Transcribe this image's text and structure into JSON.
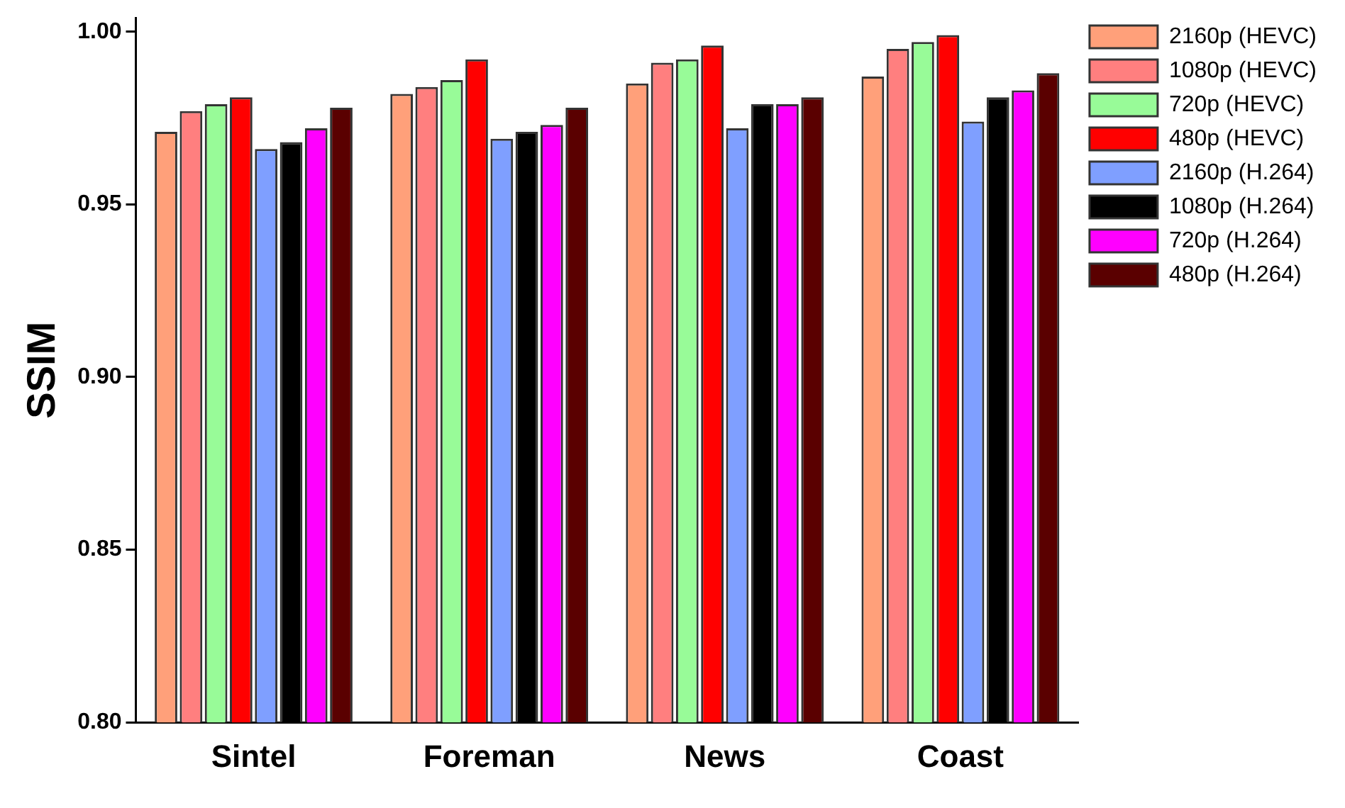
{
  "chart_data": {
    "type": "bar",
    "ylabel": "SSIM",
    "categories": [
      "Sintel",
      "Foreman",
      "News",
      "Coast"
    ],
    "series": [
      {
        "name": "2160p (HEVC)",
        "color": "#ffa07a",
        "values": [
          0.971,
          0.982,
          0.985,
          0.987
        ]
      },
      {
        "name": "1080p (HEVC)",
        "color": "#ff7f7f",
        "values": [
          0.977,
          0.984,
          0.991,
          0.995
        ]
      },
      {
        "name": "720p (HEVC)",
        "color": "#98fb98",
        "values": [
          0.979,
          0.986,
          0.992,
          0.997
        ]
      },
      {
        "name": "480p (HEVC)",
        "color": "#ff0000",
        "values": [
          0.981,
          0.992,
          0.996,
          0.999
        ]
      },
      {
        "name": "2160p (H.264)",
        "color": "#7f9fff",
        "values": [
          0.966,
          0.969,
          0.972,
          0.974
        ]
      },
      {
        "name": "1080p (H.264)",
        "color": "#000000",
        "values": [
          0.968,
          0.971,
          0.979,
          0.981
        ]
      },
      {
        "name": "720p (H.264)",
        "color": "#ff00ff",
        "values": [
          0.972,
          0.973,
          0.979,
          0.983
        ]
      },
      {
        "name": "480p (H.264)",
        "color": "#5a0000",
        "values": [
          0.978,
          0.978,
          0.981,
          0.988
        ]
      }
    ],
    "ylim": [
      0.8,
      1.004
    ],
    "yticks": [
      {
        "value": 0.8,
        "label": "0.80"
      },
      0.85,
      {
        "value": 0.9,
        "label": "0.90"
      },
      0.95,
      {
        "value": 1.0,
        "label": "1.00"
      }
    ],
    "grid": false,
    "legend": "top right"
  }
}
